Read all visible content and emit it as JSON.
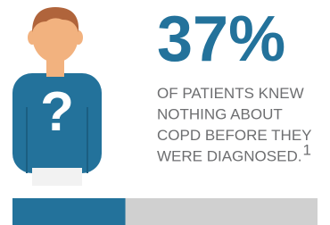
{
  "chart_data": {
    "type": "progress",
    "values": [
      37
    ],
    "value_labels": [
      "37%"
    ],
    "xlim": [
      0,
      100
    ],
    "color": "#23729b",
    "track_color": "#d0d0d0",
    "caption_lines": [
      "OF PATIENTS KNEW",
      "NOTHING ABOUT",
      "COPD BEFORE THEY",
      "WERE DIAGNOSED."
    ],
    "footnote": "1"
  }
}
